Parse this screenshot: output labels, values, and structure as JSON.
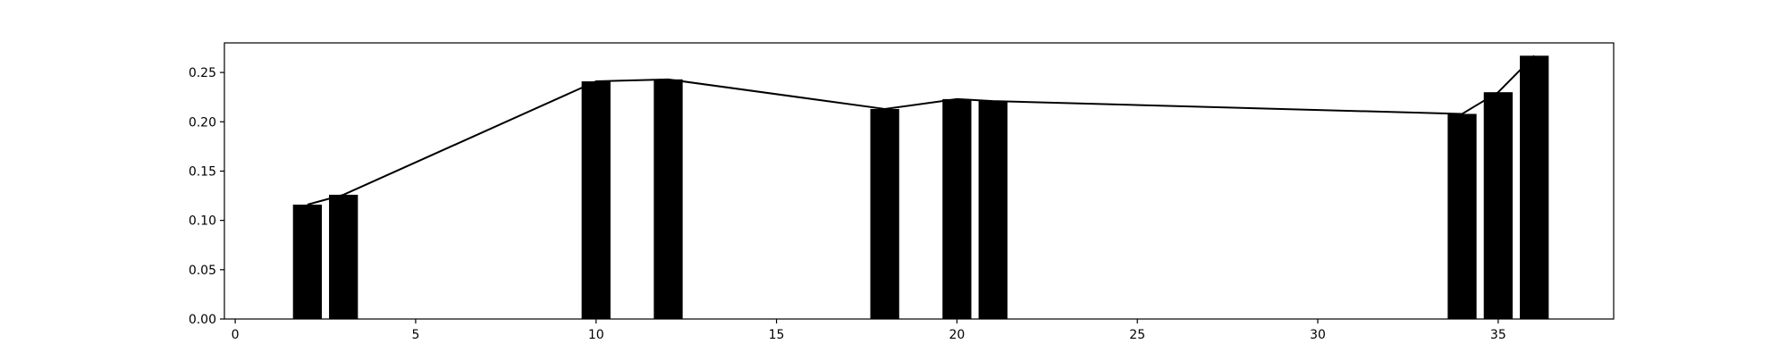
{
  "chart_data": {
    "type": "bar",
    "title": "",
    "xlabel": "",
    "ylabel": "",
    "xlim": [
      -0.3,
      38.2
    ],
    "ylim": [
      0,
      0.28
    ],
    "grid": false,
    "xticks": [
      0,
      5,
      10,
      15,
      20,
      25,
      30,
      35
    ],
    "xtick_labels": [
      "0",
      "5",
      "10",
      "15",
      "20",
      "25",
      "30",
      "35"
    ],
    "yticks": [
      0.0,
      0.05,
      0.1,
      0.15,
      0.2,
      0.25
    ],
    "ytick_labels": [
      "0.00",
      "0.05",
      "0.10",
      "0.15",
      "0.20",
      "0.25"
    ],
    "bar_width": 0.8,
    "colors": {
      "bars": "#000000",
      "line": "#000000",
      "axes": "#000000",
      "background": "#ffffff"
    },
    "series": [
      {
        "type": "bar",
        "x": [
          2,
          3,
          10,
          12,
          18,
          20,
          21,
          34,
          35,
          36
        ],
        "values": [
          0.116,
          0.126,
          0.241,
          0.243,
          0.213,
          0.223,
          0.221,
          0.208,
          0.23,
          0.267
        ]
      },
      {
        "type": "line",
        "x": [
          2,
          3,
          10,
          12,
          18,
          20,
          21,
          34,
          35,
          36
        ],
        "values": [
          0.116,
          0.126,
          0.241,
          0.243,
          0.213,
          0.223,
          0.221,
          0.208,
          0.23,
          0.267
        ]
      }
    ]
  }
}
